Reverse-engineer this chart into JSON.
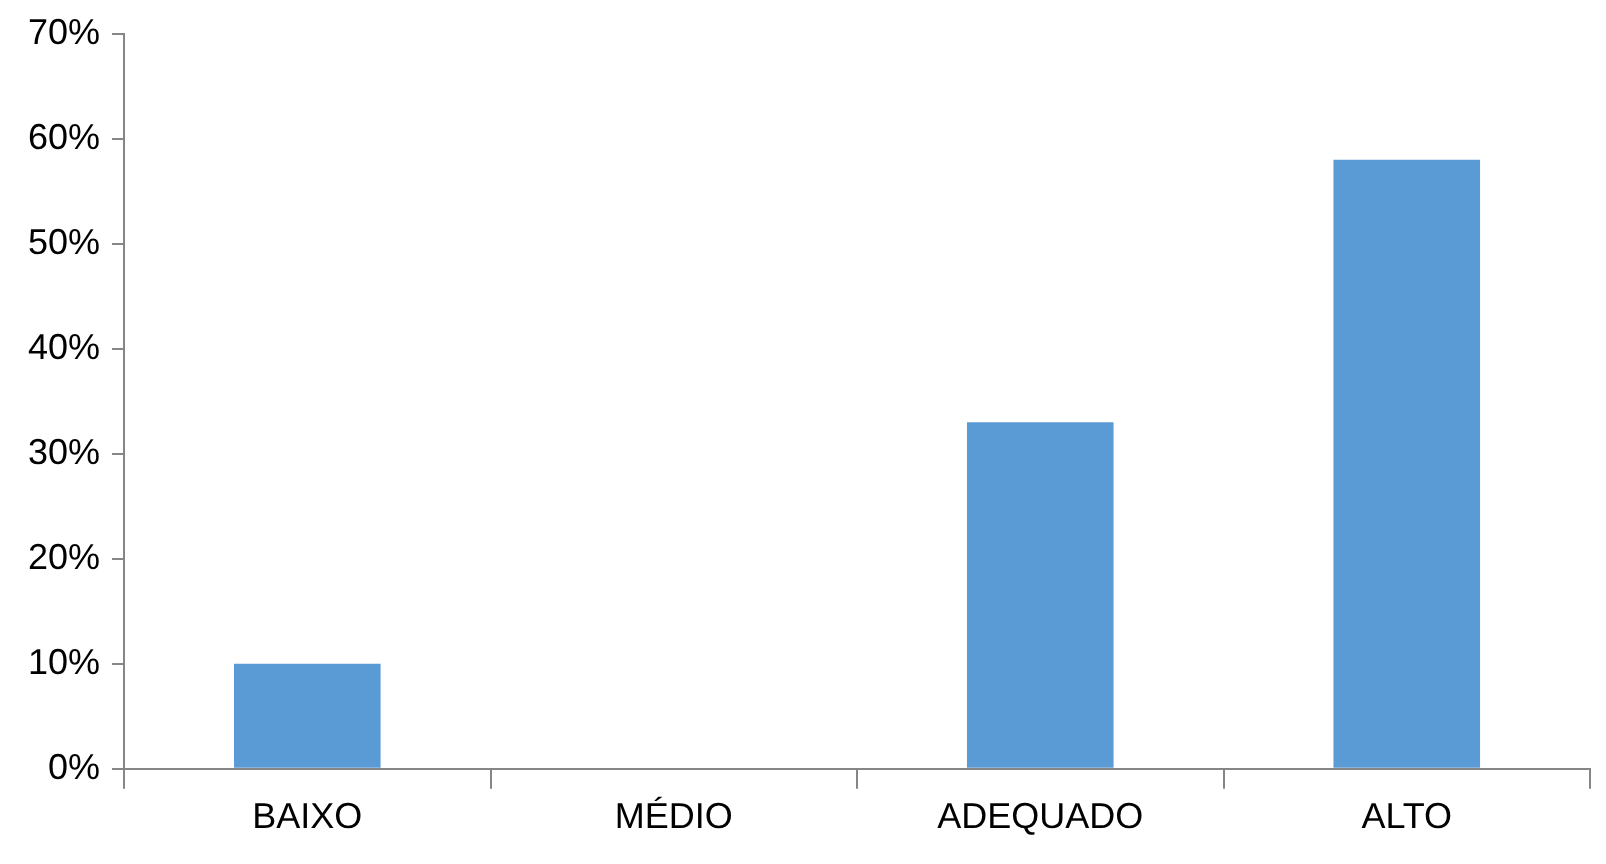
{
  "chart_data": {
    "type": "bar",
    "categories": [
      "BAIXO",
      "MÉDIO",
      "ADEQUADO",
      "ALTO"
    ],
    "values": [
      10,
      0,
      33,
      58
    ],
    "color": "#5b9bd5",
    "ylim": [
      0,
      70
    ],
    "yticks": [
      {
        "value": 0,
        "label": "0%"
      },
      {
        "value": 10,
        "label": "10%"
      },
      {
        "value": 20,
        "label": "20%"
      },
      {
        "value": 30,
        "label": "30%"
      },
      {
        "value": 40,
        "label": "40%"
      },
      {
        "value": 50,
        "label": "50%"
      },
      {
        "value": 60,
        "label": "60%"
      },
      {
        "value": 70,
        "label": "70%"
      }
    ],
    "grid": false,
    "legend": false
  }
}
